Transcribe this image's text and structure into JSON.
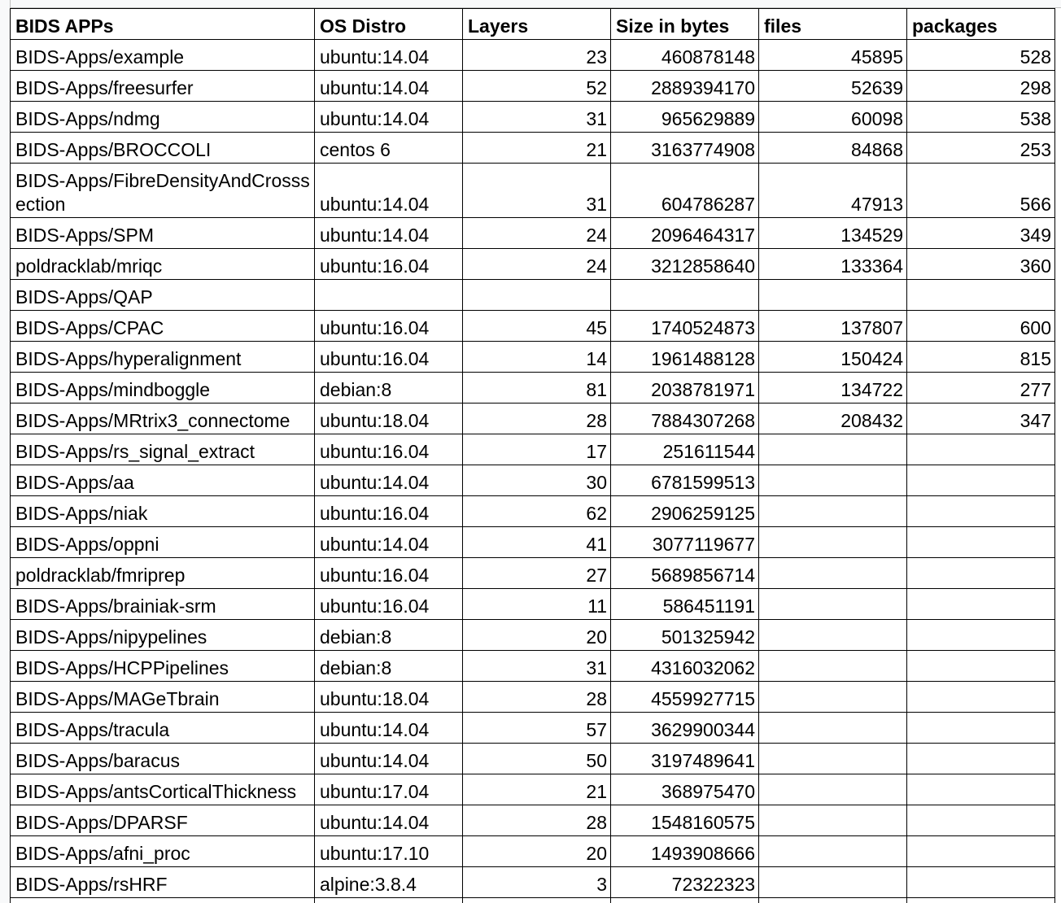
{
  "headers": [
    "BIDS APPs",
    "OS Distro",
    "Layers",
    "Size in bytes",
    "files",
    "packages"
  ],
  "rows": [
    [
      "BIDS-Apps/example",
      "ubuntu:14.04",
      "23",
      "460878148",
      "45895",
      "528"
    ],
    [
      "BIDS-Apps/freesurfer",
      "ubuntu:14.04",
      "52",
      "2889394170",
      "52639",
      "298"
    ],
    [
      "BIDS-Apps/ndmg",
      "ubuntu:14.04",
      "31",
      "965629889",
      "60098",
      "538"
    ],
    [
      "BIDS-Apps/BROCCOLI",
      "centos 6",
      "21",
      "3163774908",
      "84868",
      "253"
    ],
    [
      "BIDS-Apps/FibreDensityAndCrosssection",
      "ubuntu:14.04",
      "31",
      "604786287",
      "47913",
      "566"
    ],
    [
      "BIDS-Apps/SPM",
      "ubuntu:14.04",
      "24",
      "2096464317",
      "134529",
      "349"
    ],
    [
      "poldracklab/mriqc",
      "ubuntu:16.04",
      "24",
      "3212858640",
      "133364",
      "360"
    ],
    [
      "BIDS-Apps/QAP",
      "",
      "",
      "",
      "",
      ""
    ],
    [
      "BIDS-Apps/CPAC",
      "ubuntu:16.04",
      "45",
      "1740524873",
      "137807",
      "600"
    ],
    [
      "BIDS-Apps/hyperalignment",
      "ubuntu:16.04",
      "14",
      "1961488128",
      "150424",
      "815"
    ],
    [
      "BIDS-Apps/mindboggle",
      "debian:8",
      "81",
      "2038781971",
      "134722",
      "277"
    ],
    [
      "BIDS-Apps/MRtrix3_connectome",
      "ubuntu:18.04",
      "28",
      "7884307268",
      "208432",
      "347"
    ],
    [
      "BIDS-Apps/rs_signal_extract",
      "ubuntu:16.04",
      "17",
      "251611544",
      "",
      ""
    ],
    [
      "BIDS-Apps/aa",
      "ubuntu:14.04",
      "30",
      "6781599513",
      "",
      ""
    ],
    [
      "BIDS-Apps/niak",
      "ubuntu:16.04",
      "62",
      "2906259125",
      "",
      ""
    ],
    [
      "BIDS-Apps/oppni",
      "ubuntu:14.04",
      "41",
      "3077119677",
      "",
      ""
    ],
    [
      "poldracklab/fmriprep",
      "ubuntu:16.04",
      "27",
      "5689856714",
      "",
      ""
    ],
    [
      "BIDS-Apps/brainiak-srm",
      "ubuntu:16.04",
      "11",
      "586451191",
      "",
      ""
    ],
    [
      "BIDS-Apps/nipypelines",
      "debian:8",
      "20",
      "501325942",
      "",
      ""
    ],
    [
      "BIDS-Apps/HCPPipelines",
      "debian:8",
      "31",
      "4316032062",
      "",
      ""
    ],
    [
      "BIDS-Apps/MAGeTbrain",
      "ubuntu:18.04",
      "28",
      "4559927715",
      "",
      ""
    ],
    [
      "BIDS-Apps/tracula",
      "ubuntu:14.04",
      "57",
      "3629900344",
      "",
      ""
    ],
    [
      "BIDS-Apps/baracus",
      "ubuntu:14.04",
      "50",
      "3197489641",
      "",
      ""
    ],
    [
      "BIDS-Apps/antsCorticalThickness",
      "ubuntu:17.04",
      "21",
      "368975470",
      "",
      ""
    ],
    [
      "BIDS-Apps/DPARSF",
      "ubuntu:14.04",
      "28",
      "1548160575",
      "",
      ""
    ],
    [
      "BIDS-Apps/afni_proc",
      "ubuntu:17.10",
      "20",
      "1493908666",
      "",
      ""
    ],
    [
      "BIDS-Apps/rsHRF",
      "alpine:3.8.4",
      "3",
      "72322323",
      "",
      ""
    ]
  ]
}
